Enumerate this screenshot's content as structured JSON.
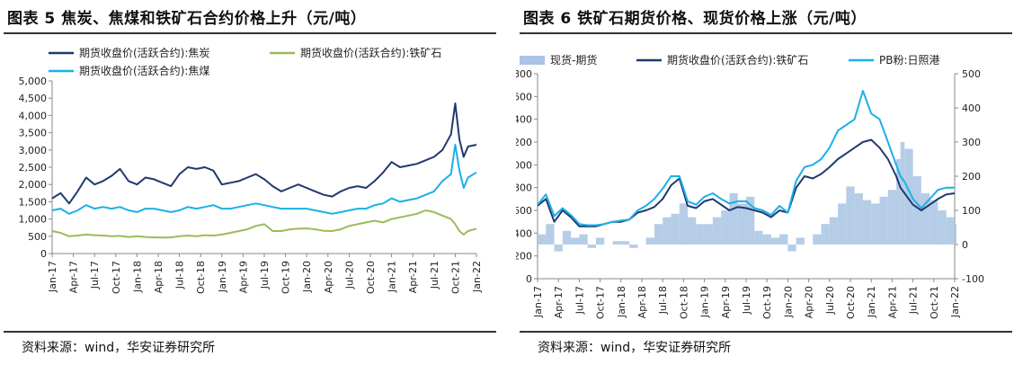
{
  "left": {
    "title": "图表 5 焦炭、焦煤和铁矿石合约价格上升（元/吨）",
    "source": "资料来源：wind，华安证券研究所"
  },
  "right": {
    "title": "图表 6  铁矿石期货价格、现货价格上涨（元/吨）",
    "source": "资料来源：wind，华安证券研究所"
  },
  "chart_data": [
    {
      "type": "line",
      "ylim": [
        0,
        5000
      ],
      "y_ticks": [
        "0",
        "500",
        "1,000",
        "1,500",
        "2,000",
        "2,500",
        "3,000",
        "3,500",
        "4,000",
        "4,500",
        "5,000"
      ],
      "x_ticks": [
        "Jan-17",
        "Apr-17",
        "Jul-17",
        "Oct-17",
        "Jan-18",
        "Apr-18",
        "Jul-18",
        "Oct-18",
        "Jan-19",
        "Apr-19",
        "Jul-19",
        "Oct-19",
        "Jan-20",
        "Apr-20",
        "Jul-20",
        "Oct-20",
        "Jan-21",
        "Apr-21",
        "Jul-21",
        "Oct-21",
        "Jan-22"
      ],
      "legend_position": "top",
      "x": [
        2017.0,
        2017.1,
        2017.2,
        2017.3,
        2017.4,
        2017.5,
        2017.6,
        2017.7,
        2017.8,
        2017.9,
        2018.0,
        2018.1,
        2018.2,
        2018.3,
        2018.4,
        2018.5,
        2018.6,
        2018.7,
        2018.8,
        2018.9,
        2019.0,
        2019.1,
        2019.2,
        2019.3,
        2019.4,
        2019.5,
        2019.6,
        2019.7,
        2019.8,
        2019.9,
        2020.0,
        2020.1,
        2020.2,
        2020.3,
        2020.4,
        2020.5,
        2020.6,
        2020.7,
        2020.8,
        2020.9,
        2021.0,
        2021.1,
        2021.2,
        2021.3,
        2021.4,
        2021.5,
        2021.6,
        2021.7,
        2021.75,
        2021.8,
        2021.85,
        2021.9,
        2022.0
      ],
      "series": [
        {
          "name": "期货收盘价(活跃合约):焦炭",
          "color": "#1f3a6e",
          "values": [
            1600,
            1750,
            1450,
            1800,
            2200,
            2000,
            2100,
            2250,
            2450,
            2100,
            2000,
            2200,
            2150,
            2050,
            1950,
            2300,
            2500,
            2450,
            2500,
            2400,
            2000,
            2050,
            2100,
            2200,
            2300,
            2150,
            1950,
            1800,
            1900,
            2000,
            1900,
            1800,
            1700,
            1650,
            1800,
            1900,
            1950,
            1900,
            2100,
            2350,
            2650,
            2500,
            2550,
            2600,
            2700,
            2800,
            3000,
            3450,
            4350,
            3300,
            2800,
            3100,
            3150
          ]
        },
        {
          "name": "期货收盘价(活跃合约):铁矿石",
          "color": "#9bbb59",
          "values": [
            650,
            600,
            500,
            520,
            550,
            530,
            520,
            500,
            510,
            480,
            500,
            480,
            470,
            460,
            470,
            500,
            520,
            500,
            530,
            520,
            550,
            600,
            650,
            700,
            800,
            850,
            650,
            650,
            700,
            720,
            730,
            700,
            660,
            650,
            700,
            800,
            850,
            900,
            950,
            900,
            1000,
            1050,
            1100,
            1150,
            1250,
            1200,
            1100,
            1000,
            850,
            650,
            550,
            650,
            720
          ]
        },
        {
          "name": "期货收盘价(活跃合约):焦煤",
          "color": "#1ab0e8",
          "values": [
            1250,
            1300,
            1150,
            1250,
            1400,
            1300,
            1350,
            1300,
            1350,
            1250,
            1200,
            1300,
            1300,
            1250,
            1200,
            1250,
            1350,
            1300,
            1350,
            1400,
            1300,
            1300,
            1350,
            1400,
            1450,
            1400,
            1350,
            1300,
            1300,
            1300,
            1300,
            1250,
            1200,
            1150,
            1200,
            1250,
            1300,
            1300,
            1400,
            1450,
            1600,
            1500,
            1550,
            1600,
            1700,
            1800,
            2100,
            2300,
            3150,
            2400,
            1900,
            2200,
            2350
          ]
        }
      ]
    },
    {
      "type": "line",
      "ylim": [
        0,
        1800
      ],
      "y2lim": [
        -100,
        500
      ],
      "y_ticks": [
        "0",
        "200",
        "400",
        "600",
        "800",
        "1,000",
        "1,200",
        "1,400",
        "1,600",
        "1,800"
      ],
      "y2_ticks": [
        "-100",
        "0",
        "100",
        "200",
        "300",
        "400",
        "500"
      ],
      "x_ticks": [
        "Jan-17",
        "Apr-17",
        "Jul-17",
        "Oct-17",
        "Jan-18",
        "Apr-18",
        "Jul-18",
        "Oct-18",
        "Jan-19",
        "Apr-19",
        "Jul-19",
        "Oct-19",
        "Jan-20",
        "Apr-20",
        "Jul-20",
        "Oct-20",
        "Jan-21",
        "Apr-21",
        "Jul-21",
        "Oct-21",
        "Jan-22"
      ],
      "legend_position": "top",
      "x": [
        2017.0,
        2017.1,
        2017.2,
        2017.3,
        2017.4,
        2017.5,
        2017.6,
        2017.7,
        2017.8,
        2017.9,
        2018.0,
        2018.1,
        2018.2,
        2018.3,
        2018.4,
        2018.5,
        2018.6,
        2018.7,
        2018.8,
        2018.9,
        2019.0,
        2019.1,
        2019.2,
        2019.3,
        2019.4,
        2019.5,
        2019.6,
        2019.7,
        2019.8,
        2019.9,
        2020.0,
        2020.1,
        2020.2,
        2020.3,
        2020.4,
        2020.5,
        2020.6,
        2020.7,
        2020.8,
        2020.9,
        2021.0,
        2021.1,
        2021.2,
        2021.3,
        2021.35,
        2021.4,
        2021.5,
        2021.6,
        2021.7,
        2021.8,
        2021.9,
        2022.0
      ],
      "series": [
        {
          "name": "现货-期货",
          "type": "area",
          "axis": "right",
          "color": "#a9c4e4",
          "values": [
            30,
            60,
            -20,
            40,
            20,
            30,
            -10,
            20,
            0,
            10,
            10,
            -10,
            0,
            20,
            60,
            80,
            90,
            120,
            80,
            60,
            60,
            80,
            100,
            150,
            120,
            140,
            40,
            30,
            20,
            30,
            -20,
            20,
            0,
            30,
            60,
            80,
            120,
            170,
            150,
            130,
            120,
            140,
            160,
            250,
            300,
            280,
            200,
            150,
            130,
            100,
            80,
            60
          ]
        },
        {
          "name": "期货收盘价(活跃合约):铁矿石",
          "color": "#1f3a6e",
          "axis": "left",
          "values": [
            640,
            700,
            500,
            600,
            540,
            460,
            460,
            460,
            480,
            500,
            500,
            520,
            580,
            600,
            630,
            700,
            820,
            880,
            640,
            620,
            680,
            700,
            650,
            600,
            630,
            620,
            600,
            580,
            540,
            600,
            580,
            800,
            900,
            880,
            920,
            980,
            1050,
            1100,
            1150,
            1200,
            1220,
            1150,
            1050,
            900,
            800,
            750,
            650,
            600,
            650,
            700,
            740,
            750
          ]
        },
        {
          "name": "PB粉:日照港",
          "color": "#1ab0e8",
          "axis": "left",
          "values": [
            650,
            740,
            550,
            620,
            560,
            480,
            470,
            470,
            480,
            500,
            510,
            520,
            600,
            640,
            700,
            790,
            900,
            900,
            680,
            650,
            720,
            750,
            700,
            660,
            680,
            680,
            620,
            600,
            560,
            640,
            580,
            860,
            980,
            1000,
            1050,
            1150,
            1300,
            1350,
            1400,
            1650,
            1450,
            1400,
            1200,
            1000,
            900,
            850,
            700,
            620,
            700,
            780,
            800,
            800
          ]
        }
      ]
    }
  ]
}
